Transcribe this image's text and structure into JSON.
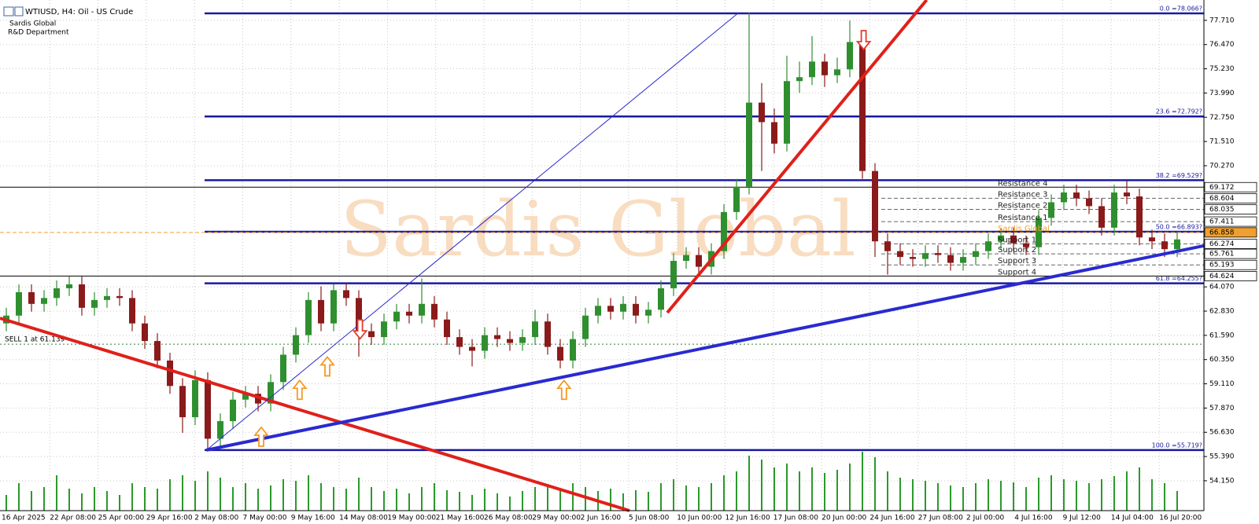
{
  "chart_data": {
    "type": "candlestick",
    "title": "WTIUSD, H4:  Oil - US Crude",
    "subtitle": [
      "Sardis Global",
      "R&D Department"
    ],
    "watermark": "Sardis Global",
    "xaxis_labels": [
      "16 Apr 2025",
      "22 Apr 08:00",
      "25 Apr 00:00",
      "29 Apr 16:00",
      "2 May 08:00",
      "7 May 00:00",
      "9 May 16:00",
      "14 May 08:00",
      "19 May 00:00",
      "21 May 16:00",
      "26 May 08:00",
      "29 May 00:00",
      "2 Jun 16:00",
      "5 Jun 08:00",
      "10 Jun 00:00",
      "12 Jun 16:00",
      "17 Jun 08:00",
      "20 Jun 00:00",
      "24 Jun 16:00",
      "27 Jun 08:00",
      "2 Jul 00:00",
      "4 Jul 16:00",
      "9 Jul 12:00",
      "14 Jul 04:00",
      "16 Jul 20:00"
    ],
    "ylim": [
      52.62,
      78.75
    ],
    "yticks": [
      {
        "value": 77.71,
        "label": "77.710"
      },
      {
        "value": 76.47,
        "label": "76.470"
      },
      {
        "value": 75.23,
        "label": "75.230"
      },
      {
        "value": 73.99,
        "label": "73.990"
      },
      {
        "value": 72.75,
        "label": "72.750"
      },
      {
        "value": 71.51,
        "label": "71.510"
      },
      {
        "value": 70.27,
        "label": "70.270"
      },
      {
        "value": 64.07,
        "label": "64.070"
      },
      {
        "value": 62.83,
        "label": "62.830"
      },
      {
        "value": 61.59,
        "label": "61.590"
      },
      {
        "value": 60.35,
        "label": "60.350"
      },
      {
        "value": 59.11,
        "label": "59.110"
      },
      {
        "value": 57.87,
        "label": "57.870"
      },
      {
        "value": 56.63,
        "label": "56.630"
      },
      {
        "value": 55.39,
        "label": "55.390"
      },
      {
        "value": 54.15,
        "label": "54.150"
      }
    ],
    "grid": true,
    "series": {
      "bull_color": "#2f8f2f",
      "bear_color": "#8b1a1a",
      "open": [
        62.2,
        62.6,
        63.8,
        63.2,
        63.5,
        64.0,
        64.2,
        63.0,
        63.4,
        63.6,
        63.5,
        62.2,
        61.3,
        60.3,
        59.0,
        57.4,
        59.3,
        56.3,
        57.2,
        58.3,
        58.6,
        58.1,
        59.2,
        60.6,
        61.6,
        63.4,
        62.2,
        63.9,
        63.5,
        61.8,
        61.5,
        62.3,
        62.8,
        62.6,
        63.2,
        62.4,
        61.5,
        61.0,
        60.8,
        61.6,
        61.4,
        61.2,
        61.5,
        62.3,
        61.0,
        60.3,
        61.4,
        62.6,
        63.1,
        62.8,
        63.2,
        62.6,
        62.9,
        64.0,
        65.4,
        65.7,
        65.1,
        65.9,
        67.9,
        69.2,
        73.5,
        72.5,
        71.4,
        74.6,
        74.8,
        75.6,
        74.9,
        75.2,
        76.6,
        70.0,
        66.4,
        65.9,
        65.6,
        65.5,
        65.8,
        65.7,
        65.3,
        65.6,
        65.9,
        66.4,
        66.7,
        66.3,
        66.1,
        67.6,
        68.4,
        68.9,
        68.6,
        68.2,
        67.1,
        68.9,
        68.7,
        66.6,
        66.4,
        66.0
      ],
      "high": [
        63.0,
        64.2,
        64.2,
        63.9,
        64.4,
        64.6,
        64.6,
        63.8,
        64.0,
        64.0,
        63.9,
        62.6,
        61.7,
        60.7,
        59.4,
        59.8,
        59.7,
        57.6,
        58.7,
        59.0,
        59.0,
        59.6,
        61.0,
        62.0,
        63.8,
        64.1,
        64.2,
        64.3,
        63.9,
        62.2,
        62.7,
        63.2,
        63.2,
        64.5,
        63.6,
        62.8,
        61.9,
        61.4,
        62.0,
        62.0,
        61.8,
        61.9,
        62.9,
        62.7,
        61.4,
        61.8,
        63.0,
        63.5,
        63.5,
        63.6,
        63.6,
        63.3,
        64.4,
        65.8,
        66.1,
        66.1,
        66.3,
        68.3,
        69.6,
        78.1,
        74.5,
        73.2,
        75.9,
        75.6,
        76.9,
        76.0,
        75.8,
        77.7,
        77.0,
        70.4,
        66.8,
        66.3,
        66.0,
        66.2,
        66.2,
        66.1,
        66.0,
        66.3,
        66.8,
        67.1,
        67.1,
        66.7,
        68.0,
        68.8,
        69.3,
        69.3,
        69.0,
        68.6,
        69.3,
        69.5,
        69.1,
        67.0,
        66.8,
        66.9
      ],
      "low": [
        61.8,
        62.2,
        62.8,
        62.8,
        63.1,
        63.6,
        62.6,
        62.6,
        63.0,
        63.1,
        61.8,
        60.9,
        59.9,
        58.6,
        56.6,
        57.0,
        55.7,
        55.9,
        56.8,
        57.9,
        57.7,
        57.7,
        58.8,
        60.2,
        61.2,
        61.8,
        61.8,
        63.1,
        60.5,
        61.1,
        61.1,
        61.9,
        62.2,
        62.2,
        62.0,
        61.1,
        60.6,
        60.0,
        60.4,
        61.0,
        60.8,
        60.8,
        61.1,
        60.6,
        59.9,
        59.9,
        61.0,
        62.2,
        62.4,
        62.4,
        62.2,
        62.2,
        62.5,
        63.6,
        65.0,
        64.7,
        64.7,
        65.5,
        67.5,
        68.8,
        70.0,
        70.9,
        71.0,
        74.0,
        74.4,
        74.3,
        74.5,
        74.8,
        69.6,
        65.6,
        64.7,
        65.2,
        65.1,
        65.1,
        65.3,
        64.9,
        64.9,
        65.2,
        65.5,
        66.0,
        65.9,
        65.7,
        65.7,
        67.2,
        68.0,
        68.2,
        67.8,
        66.7,
        66.7,
        68.3,
        66.2,
        66.0,
        65.6,
        65.6
      ],
      "close": [
        62.6,
        63.8,
        63.2,
        63.5,
        64.0,
        64.2,
        63.0,
        63.4,
        63.6,
        63.5,
        62.2,
        61.3,
        60.3,
        59.0,
        57.4,
        59.3,
        56.3,
        57.2,
        58.3,
        58.6,
        58.1,
        59.2,
        60.6,
        61.6,
        63.4,
        62.2,
        63.9,
        63.5,
        61.8,
        61.5,
        62.3,
        62.8,
        62.6,
        63.2,
        62.4,
        61.5,
        61.0,
        60.8,
        61.6,
        61.4,
        61.2,
        61.5,
        62.3,
        61.0,
        60.3,
        61.4,
        62.6,
        63.1,
        62.8,
        63.2,
        62.6,
        62.9,
        64.0,
        65.4,
        65.7,
        65.1,
        65.9,
        67.9,
        69.2,
        73.5,
        72.5,
        71.4,
        74.6,
        74.8,
        75.6,
        74.9,
        75.2,
        76.6,
        70.0,
        66.4,
        65.9,
        65.6,
        65.5,
        65.8,
        65.7,
        65.3,
        65.6,
        65.9,
        66.4,
        66.7,
        66.3,
        66.1,
        67.6,
        68.4,
        68.9,
        68.6,
        68.2,
        67.1,
        68.9,
        68.7,
        66.6,
        66.4,
        66.0,
        66.5
      ]
    },
    "volume": {
      "color": "#2a9a2a",
      "values": [
        20,
        35,
        25,
        30,
        45,
        28,
        22,
        30,
        25,
        20,
        35,
        30,
        28,
        40,
        45,
        38,
        50,
        42,
        30,
        35,
        28,
        32,
        40,
        38,
        45,
        35,
        30,
        28,
        42,
        30,
        25,
        28,
        22,
        30,
        35,
        26,
        24,
        20,
        28,
        22,
        18,
        25,
        30,
        32,
        28,
        35,
        30,
        25,
        28,
        22,
        26,
        24,
        35,
        40,
        32,
        30,
        35,
        45,
        50,
        70,
        65,
        55,
        60,
        50,
        55,
        48,
        52,
        60,
        75,
        68,
        50,
        42,
        40,
        38,
        35,
        32,
        30,
        35,
        40,
        38,
        36,
        30,
        42,
        45,
        40,
        38,
        35,
        40,
        44,
        50,
        55,
        40,
        35,
        25
      ]
    },
    "levels": [
      {
        "name": "Resistance 4",
        "value": 69.172,
        "color": "#000000",
        "style": "solid"
      },
      {
        "name": "Resistance 3",
        "value": 68.604,
        "color": "#666666",
        "style": "dash"
      },
      {
        "name": "Resistance 2",
        "value": 68.035,
        "color": "#666666",
        "style": "dash"
      },
      {
        "name": "Resistance 1",
        "value": 67.411,
        "color": "#666666",
        "style": "dash"
      },
      {
        "name": "Sardis Global",
        "value": 66.858,
        "color": "#f0a030",
        "style": "dash"
      },
      {
        "name": "Support 1",
        "value": 66.274,
        "color": "#666666",
        "style": "dash"
      },
      {
        "name": "Support 2",
        "value": 65.761,
        "color": "#666666",
        "style": "dash"
      },
      {
        "name": "Support 3",
        "value": 65.193,
        "color": "#666666",
        "style": "dash"
      },
      {
        "name": "Support 4",
        "value": 64.624,
        "color": "#000000",
        "style": "solid"
      }
    ],
    "fib": {
      "color": "#1a1aa0",
      "levels": [
        {
          "label": "0.0 =78.066?",
          "value": 78.066
        },
        {
          "label": "23.6 =72.792?",
          "value": 72.792
        },
        {
          "label": "38.2 =69.529?",
          "value": 69.529
        },
        {
          "label": "50.0 =66.893?",
          "value": 66.893
        },
        {
          "label": "61.8 =64.255?",
          "value": 64.255
        },
        {
          "label": "100.0 =55.719?",
          "value": 55.719
        }
      ]
    },
    "trendlines": [
      {
        "color": "#e0201a",
        "width": 4,
        "x": [
          -0.5,
          49.5
        ],
        "y": [
          62.47,
          52.62
        ]
      },
      {
        "color": "#2a2ad0",
        "width": 4,
        "x": [
          15.9,
          95.1
        ],
        "y": [
          55.72,
          66.17
        ]
      },
      {
        "color": "#e0201a",
        "width": 4,
        "x": [
          52.5,
          73.1
        ],
        "y": [
          62.75,
          78.75
        ]
      },
      {
        "color": "#2a2ad0",
        "width": 1,
        "x": [
          15.9,
          58.1
        ],
        "y": [
          55.72,
          78.066
        ]
      }
    ],
    "signals": [
      {
        "direction": "up",
        "color": "#f59a23",
        "x": 20.25,
        "y": 56.4
      },
      {
        "direction": "up",
        "color": "#f59a23",
        "x": 23.3,
        "y": 58.8
      },
      {
        "direction": "up",
        "color": "#f59a23",
        "x": 25.5,
        "y": 60.0
      },
      {
        "direction": "up",
        "color": "#f59a23",
        "x": 44.3,
        "y": 58.8
      },
      {
        "direction": "down",
        "color": "#e23c2c",
        "x": 28.1,
        "y": 61.9
      },
      {
        "direction": "down",
        "color": "#e23c2c",
        "x": 68.1,
        "y": 76.7
      }
    ],
    "order": {
      "label": "SELL 1 at 61.139",
      "value": 61.139,
      "color": "#2e7d32"
    }
  }
}
